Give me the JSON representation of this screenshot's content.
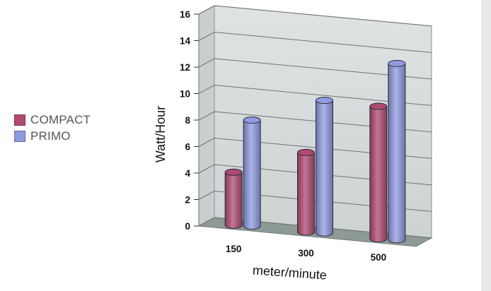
{
  "chart_data": {
    "type": "bar",
    "style": "3d-cylinder",
    "categories": [
      "150",
      "300",
      "500"
    ],
    "series": [
      {
        "name": "COMPACT",
        "color": "#b04a72",
        "values": [
          4,
          6,
          10
        ]
      },
      {
        "name": "PRIMO",
        "color": "#8f9be0",
        "values": [
          8,
          10,
          13.3
        ]
      }
    ],
    "xlabel": "meter/minute",
    "ylabel": "Watt/Hour",
    "ylim": [
      0,
      16
    ],
    "yticks": [
      "0",
      "2",
      "4",
      "6",
      "8",
      "10",
      "12",
      "14",
      "16"
    ],
    "grid": true,
    "legend_position": "left"
  }
}
